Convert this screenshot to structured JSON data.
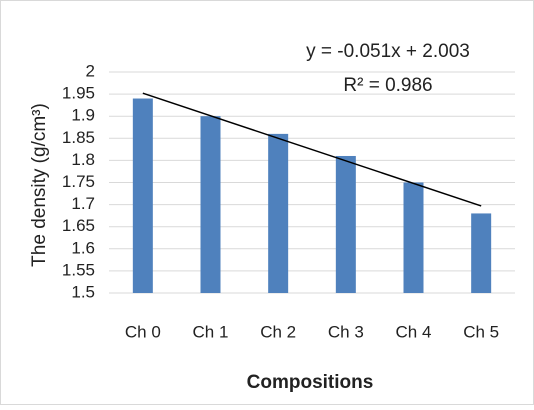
{
  "chart_data": {
    "type": "bar",
    "categories": [
      "Ch 0",
      "Ch 1",
      "Ch 2",
      "Ch 3",
      "Ch 4",
      "Ch 5"
    ],
    "values": [
      1.94,
      1.9,
      1.86,
      1.81,
      1.75,
      1.68
    ],
    "color": "#4f81bd",
    "ylim": [
      1.5,
      2
    ],
    "yticks": [
      1.5,
      1.55,
      1.6,
      1.65,
      1.7,
      1.75,
      1.8,
      1.85,
      1.9,
      1.95,
      2
    ],
    "grid": true,
    "y_label": "The density (g/cm³)",
    "x_label": "Compositions",
    "trendline": {
      "equation": "y = -0.051x + 2.003",
      "r_squared": "R² = 0.986",
      "start": 1.952,
      "end": 1.697,
      "color": "#000000"
    }
  }
}
